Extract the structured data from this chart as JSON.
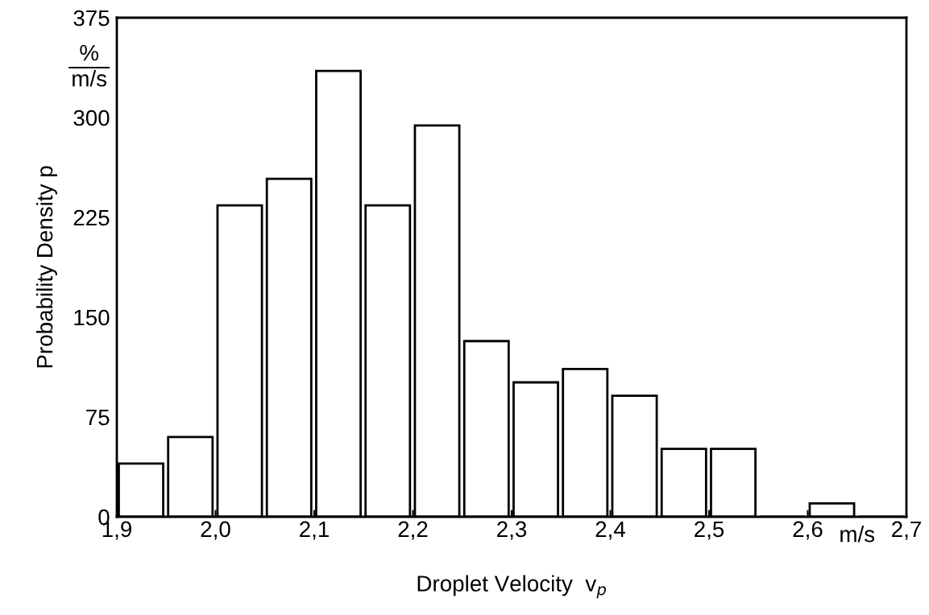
{
  "chart_data": {
    "type": "histogram",
    "xlabel": "Droplet Velocity  v$_{p}$",
    "ylabel": "Probability Density p",
    "bins": [
      1.9,
      1.95,
      2.0,
      2.05,
      2.1,
      2.15,
      2.2,
      2.25,
      2.3,
      2.35,
      2.4,
      2.45,
      2.5,
      2.55,
      2.6,
      2.65,
      2.7
    ],
    "values": [
      40,
      60,
      234,
      254,
      335,
      234,
      294,
      132,
      101,
      111,
      91,
      51,
      51,
      0,
      10,
      0
    ],
    "color": "#ffffff",
    "xlim": [
      1.9,
      2.7
    ],
    "xticks": [
      {
        "value": 1.9,
        "label": "1,9"
      },
      {
        "value": 2.0,
        "label": "2,0"
      },
      {
        "value": 2.1,
        "label": "2,1"
      },
      {
        "value": 2.2,
        "label": "2,2"
      },
      {
        "value": 2.3,
        "label": "2,3"
      },
      {
        "value": 2.4,
        "label": "2,4"
      },
      {
        "value": 2.5,
        "label": "2,5"
      },
      {
        "value": 2.6,
        "label": "2,6"
      },
      {
        "value": 2.7,
        "label": "2,7"
      }
    ],
    "ylim": [
      0,
      375
    ],
    "yticks": [
      0,
      75,
      150,
      225,
      300,
      375
    ],
    "annotations": [
      "%",
      "m/s",
      "m/s"
    ],
    "grid": false
  }
}
